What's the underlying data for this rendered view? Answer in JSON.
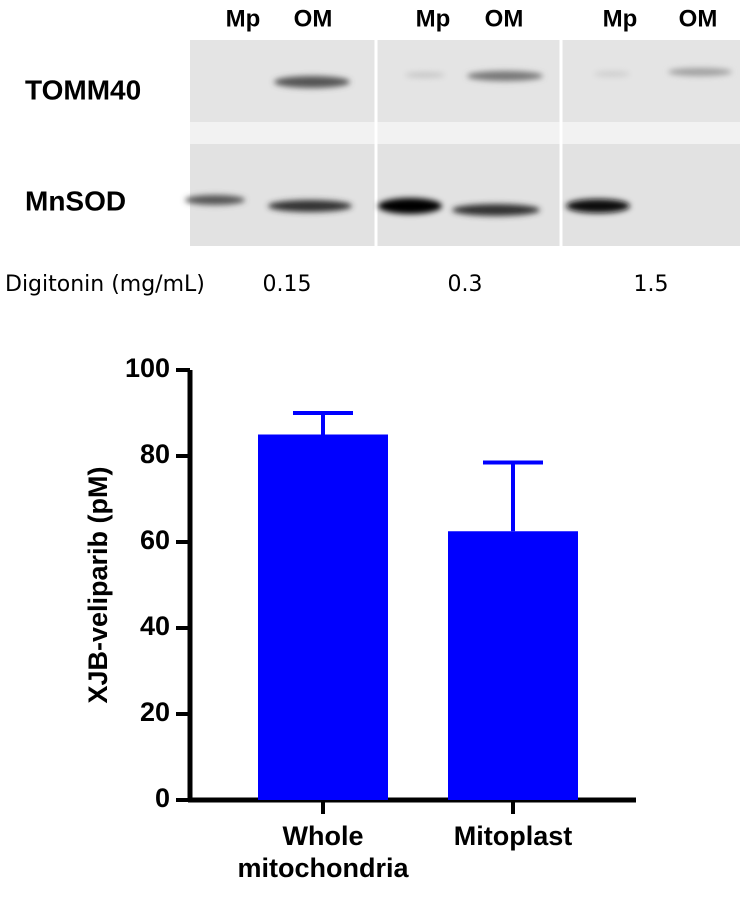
{
  "blot": {
    "lanes": [
      "Mp",
      "OM",
      "Mp",
      "OM",
      "Mp",
      "OM"
    ],
    "rows": [
      "TOMM40",
      "MnSOD"
    ],
    "condition_label": "Digitonin (mg/mL)",
    "conditions": [
      "0.15",
      "0.3",
      "1.5"
    ]
  },
  "chart_data": {
    "type": "bar",
    "categories": [
      "Whole mitochondria",
      "Mitoplast"
    ],
    "values": [
      85,
      62.5
    ],
    "errors": [
      5,
      16
    ],
    "color": "#0000ff",
    "y_label": "XJB-veliparib (pM)",
    "ylim": [
      0,
      100
    ],
    "yticks": [
      0,
      20,
      40,
      60,
      80,
      100
    ]
  }
}
